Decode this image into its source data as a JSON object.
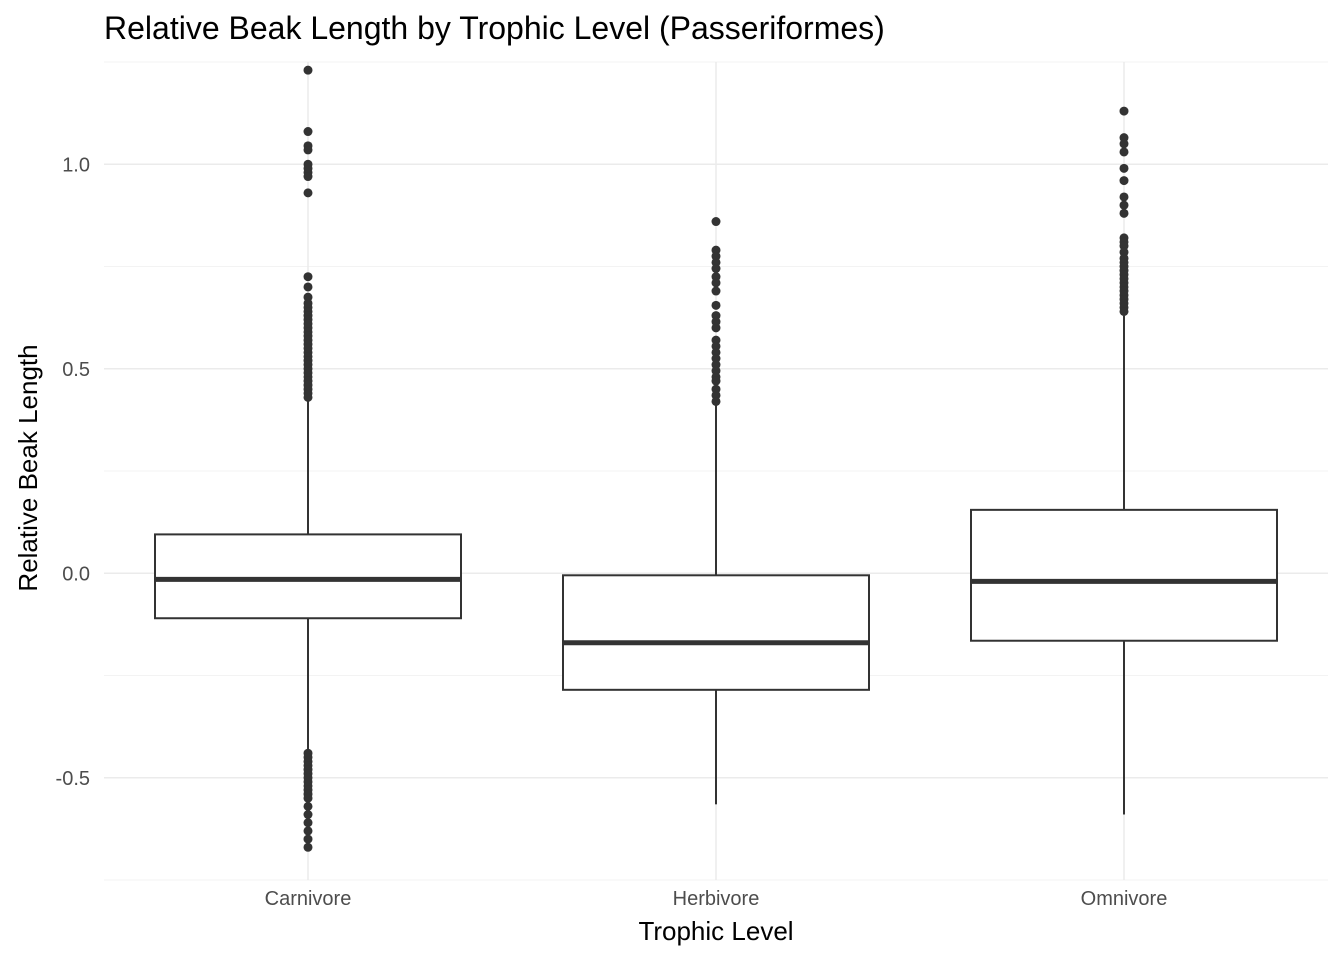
{
  "chart_data": {
    "type": "boxplot",
    "title": "Relative Beak Length by Trophic Level (Passeriformes)",
    "xlabel": "Trophic Level",
    "ylabel": "Relative Beak Length",
    "ylim": [
      -0.75,
      1.25
    ],
    "yticks": [
      -0.5,
      0.0,
      0.5,
      1.0
    ],
    "ytick_labels": [
      "-0.5",
      "0.0",
      "0.5",
      "1.0"
    ],
    "grid": true,
    "categories": [
      "Carnivore",
      "Herbivore",
      "Omnivore"
    ],
    "boxes": [
      {
        "category": "Carnivore",
        "whisker_low": -0.43,
        "q1": -0.11,
        "median": -0.015,
        "q3": 0.095,
        "whisker_high": 0.42,
        "outliers": [
          1.23,
          1.08,
          1.045,
          1.035,
          1.0,
          0.99,
          0.98,
          0.97,
          0.93,
          0.725,
          0.7,
          0.675,
          0.66,
          0.65,
          0.64,
          0.63,
          0.62,
          0.61,
          0.6,
          0.59,
          0.58,
          0.57,
          0.56,
          0.55,
          0.54,
          0.53,
          0.52,
          0.51,
          0.5,
          0.49,
          0.48,
          0.47,
          0.46,
          0.45,
          0.44,
          0.43,
          -0.44,
          -0.45,
          -0.46,
          -0.47,
          -0.48,
          -0.49,
          -0.5,
          -0.51,
          -0.52,
          -0.53,
          -0.54,
          -0.55,
          -0.57,
          -0.59,
          -0.61,
          -0.63,
          -0.65,
          -0.67
        ]
      },
      {
        "category": "Herbivore",
        "whisker_low": -0.565,
        "q1": -0.285,
        "median": -0.17,
        "q3": -0.005,
        "whisker_high": 0.415,
        "outliers": [
          0.86,
          0.79,
          0.775,
          0.76,
          0.745,
          0.725,
          0.71,
          0.69,
          0.655,
          0.63,
          0.615,
          0.6,
          0.57,
          0.555,
          0.54,
          0.525,
          0.51,
          0.495,
          0.48,
          0.47,
          0.45,
          0.435,
          0.42
        ]
      },
      {
        "category": "Omnivore",
        "whisker_low": -0.59,
        "q1": -0.165,
        "median": -0.02,
        "q3": 0.155,
        "whisker_high": 0.63,
        "outliers": [
          1.13,
          1.065,
          1.05,
          1.03,
          0.99,
          0.96,
          0.92,
          0.9,
          0.88,
          0.82,
          0.81,
          0.8,
          0.785,
          0.77,
          0.76,
          0.75,
          0.74,
          0.73,
          0.72,
          0.71,
          0.7,
          0.69,
          0.68,
          0.67,
          0.66,
          0.65,
          0.64
        ]
      }
    ],
    "colors": {
      "box_stroke": "#333333",
      "box_fill": "#ffffff",
      "outlier": "#333333",
      "grid_major": "#ebebeb",
      "grid_minor": "#f3f3f3",
      "tick_text": "#4d4d4d",
      "title_text": "#000000"
    }
  }
}
